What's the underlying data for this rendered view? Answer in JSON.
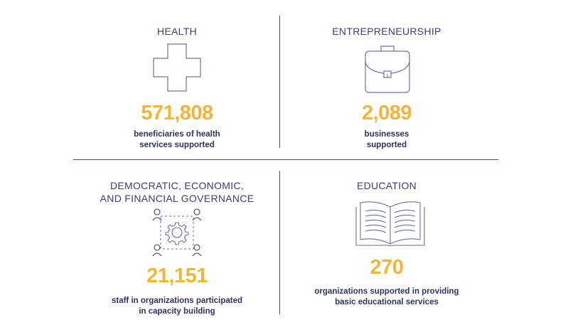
{
  "colors": {
    "accent": "#f2b539",
    "text": "#3b3f6d",
    "icon": "#6c71a3"
  },
  "panels": {
    "health": {
      "title": "HEALTH",
      "icon": "medical-cross-icon",
      "value": "571,808",
      "caption": [
        "beneficiaries of health",
        "services supported"
      ]
    },
    "entrepreneurship": {
      "title": "ENTREPRENEURSHIP",
      "icon": "briefcase-icon",
      "value": "2,089",
      "caption": [
        "businesses",
        "supported"
      ]
    },
    "governance": {
      "title": [
        "DEMOCRATIC, ECONOMIC,",
        "AND FINANCIAL GOVERNANCE"
      ],
      "icon": "people-gear-icon",
      "value": "21,151",
      "caption": [
        "staff in organizations participated",
        "in capacity building"
      ]
    },
    "education": {
      "title": "EDUCATION",
      "icon": "open-book-icon",
      "value": "270",
      "caption": [
        "organizations supported in providing",
        "basic educational services"
      ]
    }
  }
}
